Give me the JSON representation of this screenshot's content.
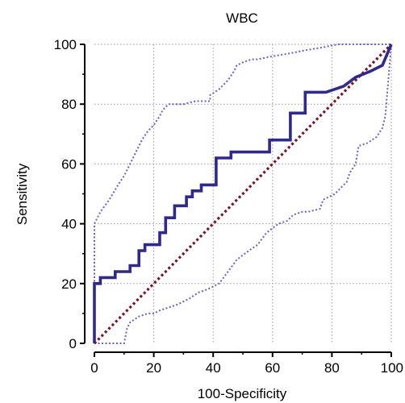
{
  "chart_data": {
    "type": "line",
    "title": "WBC",
    "xlabel": "100-Specificity",
    "ylabel": "Sensitivity",
    "xlim": [
      0,
      100
    ],
    "ylim": [
      0,
      100
    ],
    "xticks": [
      0,
      20,
      40,
      60,
      80,
      100
    ],
    "yticks": [
      0,
      20,
      40,
      60,
      80,
      100
    ],
    "x_tick_labels": [
      "0",
      "20",
      "40",
      "60",
      "80",
      "100"
    ],
    "y_tick_labels": [
      "0",
      "20",
      "40",
      "60",
      "80",
      "100"
    ],
    "grid": true,
    "colors": {
      "roc": "#2e2a8c",
      "ci": "#6a5fc7",
      "diagonal": "#7a1420",
      "grid": "#9a9a9a"
    },
    "series": [
      {
        "role": "roc-curve",
        "style": "solid",
        "x": [
          0,
          0,
          2,
          2,
          7,
          7,
          12,
          12,
          15,
          15,
          17,
          17,
          22,
          22,
          24,
          24,
          27,
          27,
          31,
          31,
          33,
          33,
          36,
          36,
          41,
          41,
          46,
          46,
          59,
          59,
          66,
          66,
          71,
          71,
          78,
          84,
          88,
          93,
          97,
          100
        ],
        "y": [
          0,
          20,
          20,
          22,
          22,
          24,
          24,
          26,
          26,
          31,
          31,
          33,
          33,
          37,
          37,
          42,
          42,
          46,
          46,
          49,
          49,
          51,
          51,
          53,
          53,
          62,
          62,
          64,
          64,
          68,
          68,
          77,
          77,
          84,
          84,
          86,
          89,
          91,
          93,
          100
        ]
      },
      {
        "role": "upper-confidence-bound",
        "style": "dotted",
        "x": [
          0,
          0,
          2,
          5,
          8,
          10,
          12,
          14,
          16,
          18,
          20,
          22,
          23,
          25,
          27,
          30,
          34,
          39,
          39,
          42,
          45,
          47,
          48,
          50,
          53,
          55,
          60,
          66,
          71,
          77,
          82,
          88,
          100
        ],
        "y": [
          0,
          40,
          44,
          48,
          53,
          56,
          60,
          64,
          68,
          71,
          73,
          76,
          78,
          80,
          80,
          80,
          81,
          81,
          83,
          85,
          88,
          91,
          93,
          94,
          95,
          95,
          96,
          97,
          98,
          99,
          100,
          100,
          100
        ]
      },
      {
        "role": "lower-confidence-bound",
        "style": "dotted",
        "x": [
          0,
          10,
          11,
          12,
          15,
          18,
          20,
          22,
          25,
          28,
          32,
          35,
          38,
          42,
          45,
          48,
          52,
          55,
          58,
          62,
          65,
          67,
          70,
          72,
          76,
          77,
          81,
          83,
          85,
          86,
          88,
          89,
          92,
          95,
          97,
          98,
          100
        ],
        "y": [
          0,
          0,
          5,
          7,
          9,
          10,
          10,
          11,
          12,
          13,
          15,
          17,
          18,
          20,
          24,
          28,
          31,
          33,
          37,
          40,
          41,
          43,
          44,
          44,
          45,
          48,
          50,
          52,
          54,
          57,
          60,
          66,
          67,
          69,
          72,
          76,
          100
        ]
      },
      {
        "role": "reference-diagonal",
        "style": "dotted",
        "x": [
          0,
          100
        ],
        "y": [
          0,
          100
        ]
      }
    ]
  }
}
